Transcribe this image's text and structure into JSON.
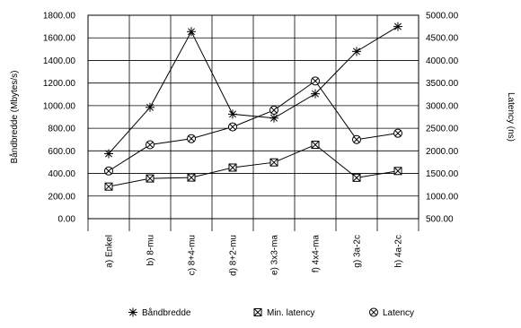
{
  "chart_data": {
    "type": "line",
    "categories": [
      "a) Enkel",
      "b) 8-mu",
      "c) 8+4-mu",
      "d) 8+2-mu",
      "e) 3x3-ma",
      "f) 4x4-ma",
      "g) 3a-2c",
      "h) 4a-2c"
    ],
    "ylabel": "Båndbredde (Mbytes/s)",
    "y2label": "Latency (ns)",
    "ylim": [
      0,
      1800
    ],
    "y2lim": [
      500,
      5000
    ],
    "yticks": [
      "0.00",
      "200.00",
      "400.00",
      "600.00",
      "800.00",
      "1000.00",
      "1200.00",
      "1400.00",
      "1600.00",
      "1800.00"
    ],
    "y2ticks": [
      "500.00",
      "1000.00",
      "1500.00",
      "2000.00",
      "2500.00",
      "3000.00",
      "3500.00",
      "4000.00",
      "4500.00",
      "5000.00"
    ],
    "grid": true,
    "legend_position": "bottom",
    "series": [
      {
        "name": "Båndbredde",
        "axis": "left",
        "marker": "asterisk",
        "values": [
          575,
          985,
          1655,
          925,
          890,
          1105,
          1480,
          1700
        ]
      },
      {
        "name": "Min. latency",
        "axis": "right",
        "marker": "boxed-x",
        "values": [
          1210,
          1390,
          1410,
          1630,
          1745,
          2135,
          1405,
          1555
        ]
      },
      {
        "name": "Latency",
        "axis": "right",
        "marker": "circled-x",
        "values": [
          1555,
          2135,
          2270,
          2530,
          2900,
          3545,
          2250,
          2390
        ]
      }
    ]
  }
}
